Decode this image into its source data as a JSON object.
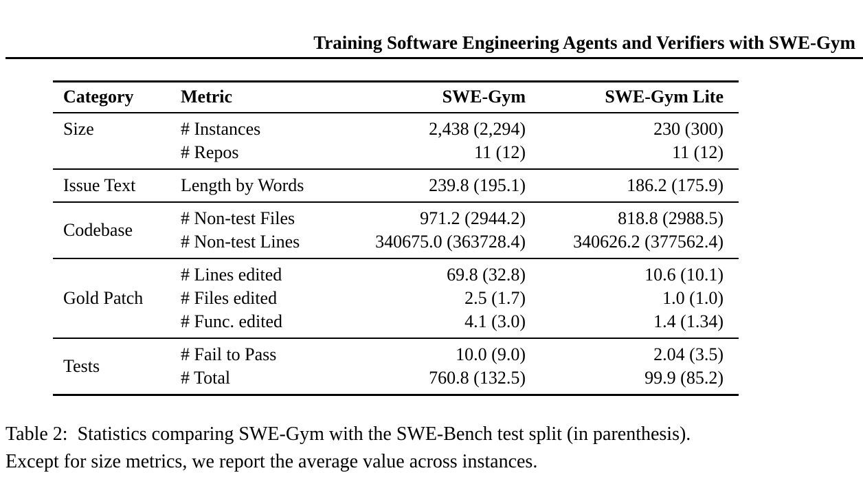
{
  "page": {
    "running_header": "Training Software Engineering Agents and Verifiers with SWE-Gym"
  },
  "colors": {
    "text": "#000000",
    "background": "#ffffff",
    "rule": "#000000"
  },
  "table": {
    "columns": [
      "Category",
      "Metric",
      "SWE-Gym",
      "SWE-Gym Lite"
    ],
    "sections": [
      {
        "category": "Size",
        "rows": [
          {
            "metric": "# Instances",
            "swe_gym": "2,438 (2,294)",
            "swe_gym_lite": "230 (300)"
          },
          {
            "metric": "# Repos",
            "swe_gym": "11 (12)",
            "swe_gym_lite": "11 (12)"
          }
        ]
      },
      {
        "category": "Issue Text",
        "rows": [
          {
            "metric": "Length by Words",
            "swe_gym": "239.8 (195.1)",
            "swe_gym_lite": "186.2 (175.9)"
          }
        ]
      },
      {
        "category": "Codebase",
        "rows": [
          {
            "metric": "# Non-test Files",
            "swe_gym": "971.2 (2944.2)",
            "swe_gym_lite": "818.8 (2988.5)"
          },
          {
            "metric": "# Non-test Lines",
            "swe_gym": "340675.0 (363728.4)",
            "swe_gym_lite": "340626.2 (377562.4)"
          }
        ]
      },
      {
        "category": "Gold Patch",
        "rows": [
          {
            "metric": "# Lines edited",
            "swe_gym": "69.8 (32.8)",
            "swe_gym_lite": "10.6 (10.1)"
          },
          {
            "metric": "# Files edited",
            "swe_gym": "2.5 (1.7)",
            "swe_gym_lite": "1.0 (1.0)"
          },
          {
            "metric": "# Func. edited",
            "swe_gym": "4.1 (3.0)",
            "swe_gym_lite": "1.4 (1.34)"
          }
        ]
      },
      {
        "category": "Tests",
        "rows": [
          {
            "metric": "# Fail to Pass",
            "swe_gym": "10.0 (9.0)",
            "swe_gym_lite": "2.04 (3.5)"
          },
          {
            "metric": "# Total",
            "swe_gym": "760.8 (132.5)",
            "swe_gym_lite": "99.9 (85.2)"
          }
        ]
      }
    ]
  },
  "caption": {
    "line1": "Table 2:  Statistics comparing SWE-Gym with the SWE-Bench test split (in parenthesis).",
    "line2": "Except for size metrics, we report the average value across instances."
  }
}
